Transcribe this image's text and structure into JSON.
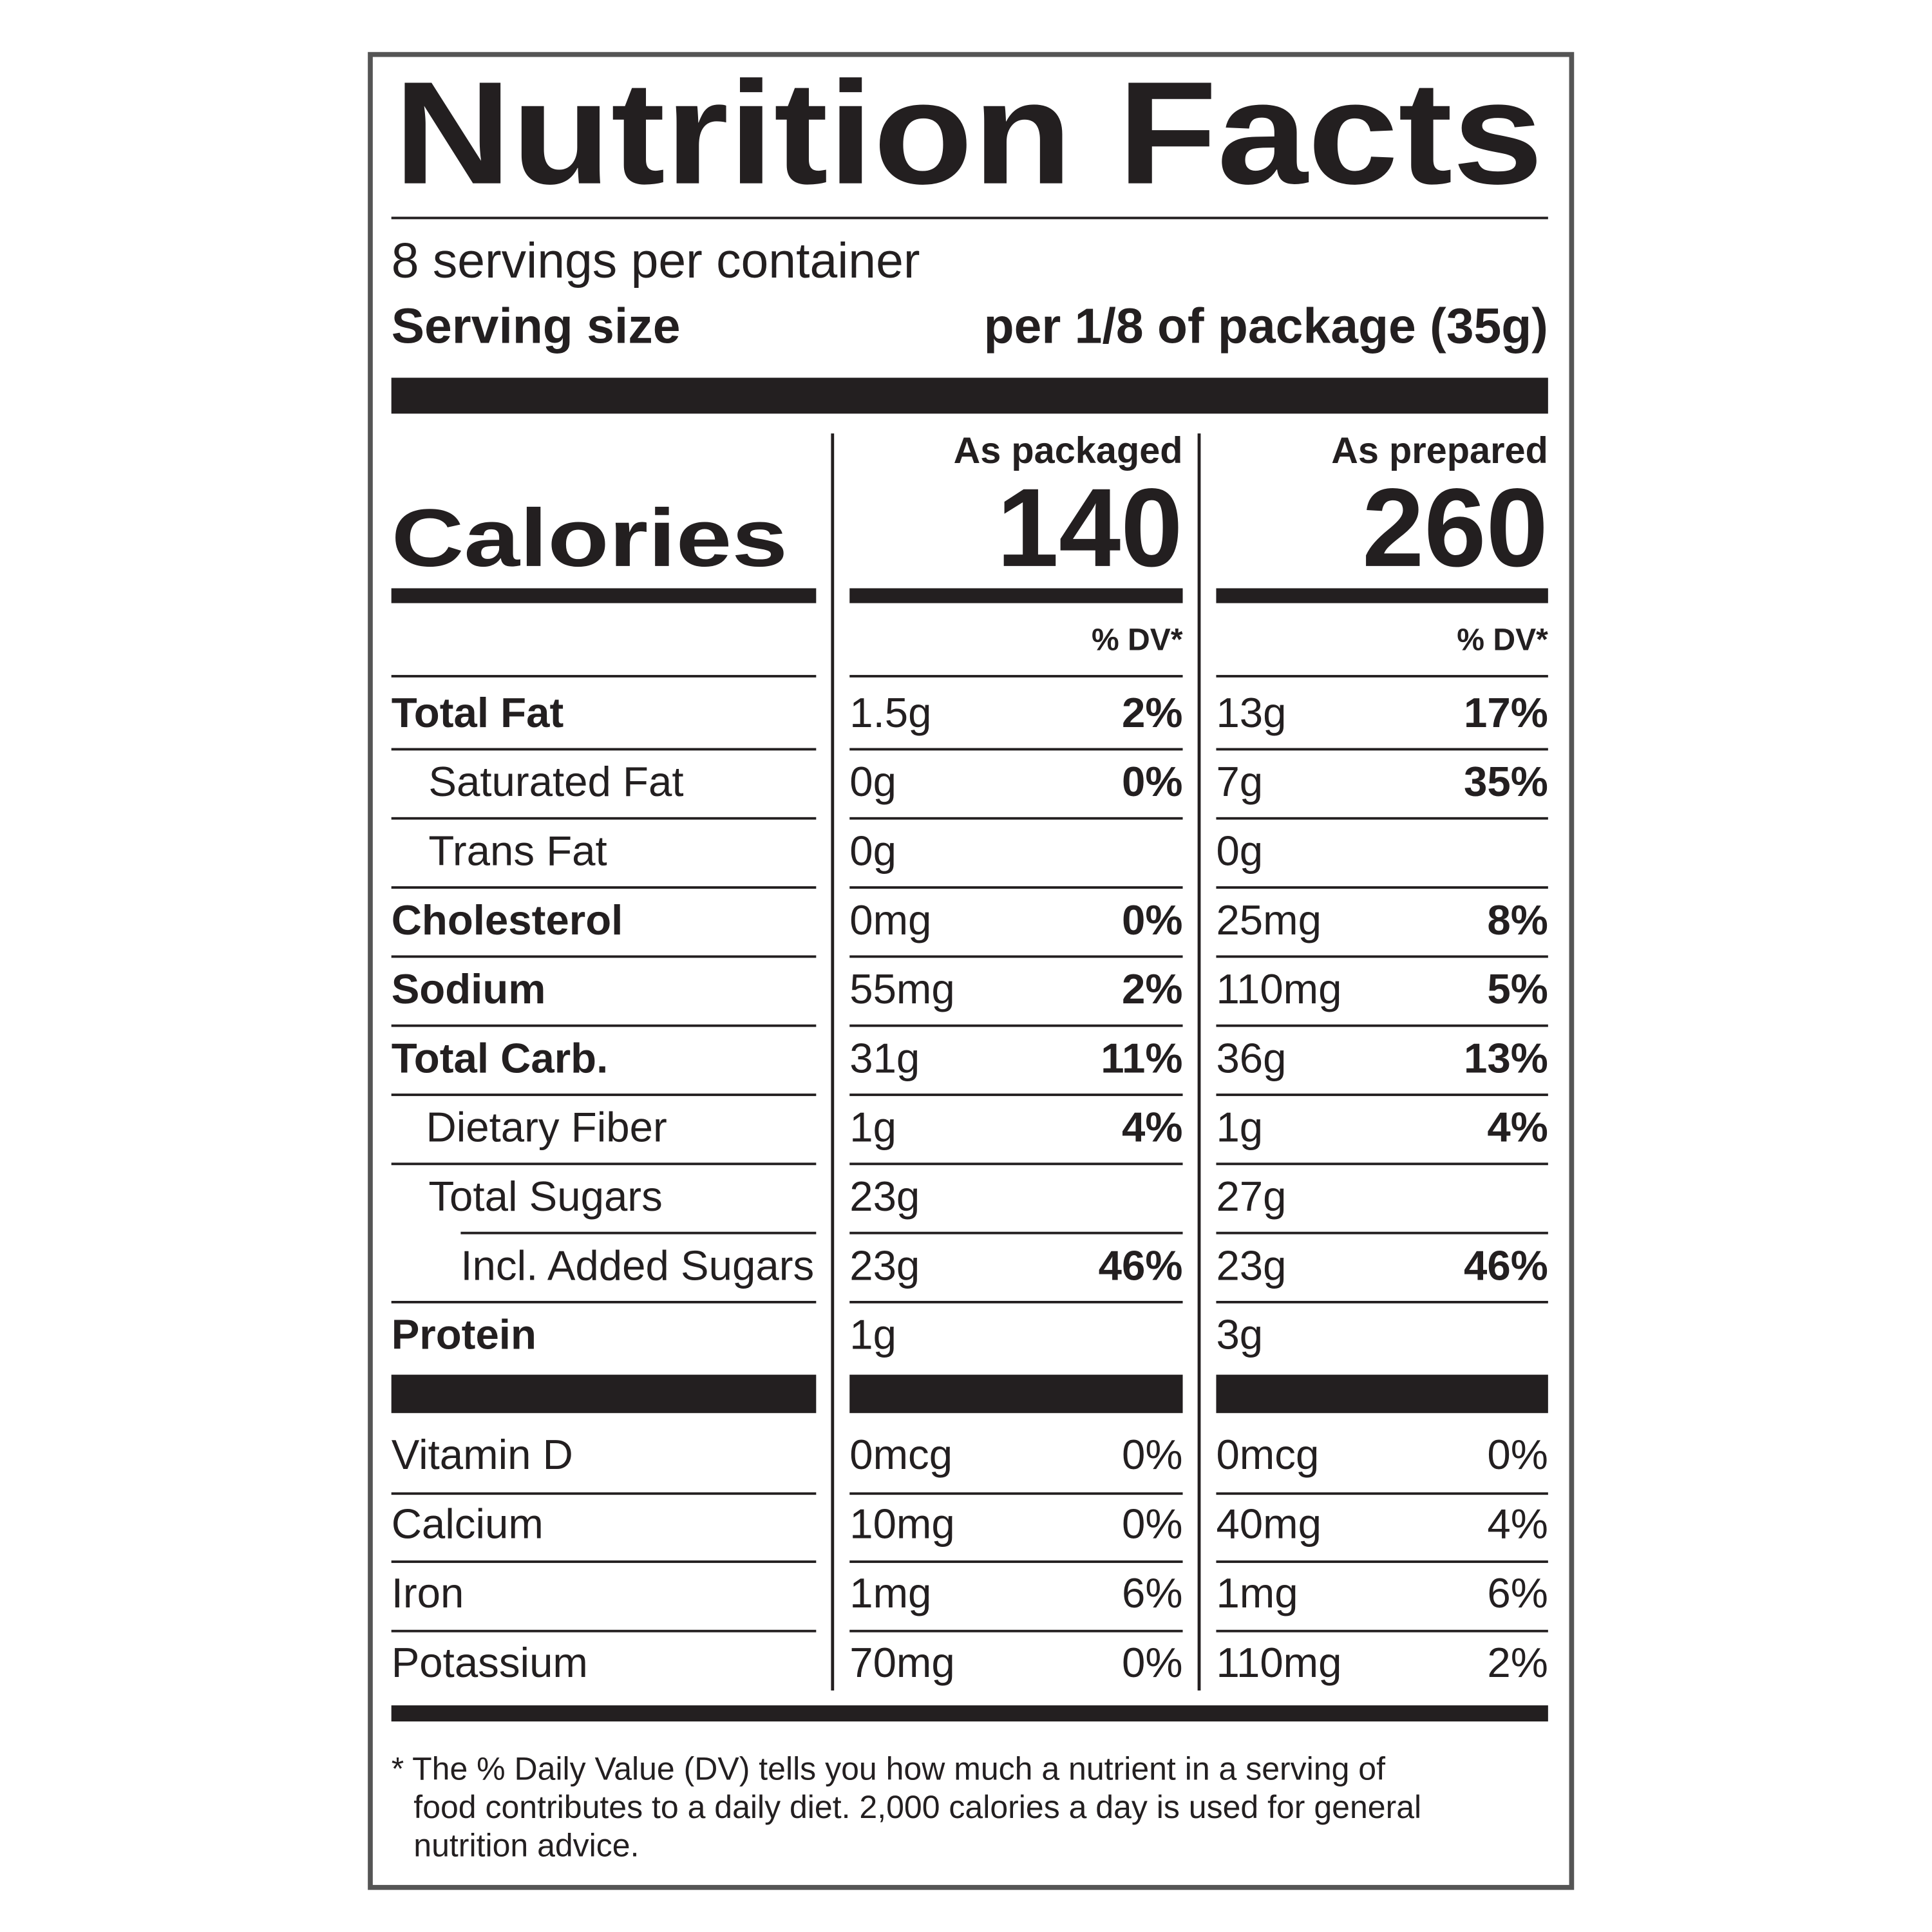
{
  "title": "Nutrition Facts",
  "servings": "8 servings per container",
  "serving_size": {
    "label": "Serving size",
    "value": "per 1/8 of package (35g)"
  },
  "calories_label": "Calories",
  "columns": [
    {
      "header": "As packaged",
      "calories": 140,
      "dv_header": "% DV*"
    },
    {
      "header": "As prepared",
      "calories": 260,
      "dv_header": "% DV*"
    }
  ],
  "nutrients": [
    {
      "name": "Total Fat",
      "bold": true,
      "indent": 0,
      "values": [
        {
          "amount": "1.5g",
          "dv": "2%"
        },
        {
          "amount": "13g",
          "dv": "17%"
        }
      ]
    },
    {
      "name": "Saturated Fat",
      "bold": false,
      "indent": 1,
      "values": [
        {
          "amount": "0g",
          "dv": "0%"
        },
        {
          "amount": "7g",
          "dv": "35%"
        }
      ]
    },
    {
      "name": "Trans Fat",
      "bold": false,
      "indent": 1,
      "values": [
        {
          "amount": "0g"
        },
        {
          "amount": "0g"
        }
      ]
    },
    {
      "name": "Cholesterol",
      "bold": true,
      "indent": 0,
      "values": [
        {
          "amount": "0mg",
          "dv": "0%"
        },
        {
          "amount": "25mg",
          "dv": "8%"
        }
      ]
    },
    {
      "name": "Sodium",
      "bold": true,
      "indent": 0,
      "values": [
        {
          "amount": "55mg",
          "dv": "2%"
        },
        {
          "amount": "110mg",
          "dv": "5%"
        }
      ]
    },
    {
      "name": "Total Carb.",
      "bold": true,
      "indent": 0,
      "values": [
        {
          "amount": "31g",
          "dv": "11%"
        },
        {
          "amount": "36g",
          "dv": "13%"
        }
      ]
    },
    {
      "name": "Dietary Fiber",
      "bold": false,
      "indent": 1,
      "values": [
        {
          "amount": "1g",
          "dv": "4%"
        },
        {
          "amount": "1g",
          "dv": "4%"
        }
      ]
    },
    {
      "name": "Total Sugars",
      "bold": false,
      "indent": 1,
      "values": [
        {
          "amount": "23g"
        },
        {
          "amount": "27g"
        }
      ]
    },
    {
      "name": "Incl. Added Sugars",
      "bold": false,
      "indent": 2,
      "values": [
        {
          "amount": "23g",
          "dv": "46%"
        },
        {
          "amount": "23g",
          "dv": "46%"
        }
      ]
    },
    {
      "name": "Protein",
      "bold": true,
      "indent": 0,
      "values": [
        {
          "amount": "1g"
        },
        {
          "amount": "3g"
        }
      ]
    }
  ],
  "vitamins": [
    {
      "name": "Vitamin D",
      "values": [
        {
          "amount": "0mcg",
          "dv": "0%"
        },
        {
          "amount": "0mcg",
          "dv": "0%"
        }
      ]
    },
    {
      "name": "Calcium",
      "values": [
        {
          "amount": "10mg",
          "dv": "0%"
        },
        {
          "amount": "40mg",
          "dv": "4%"
        }
      ]
    },
    {
      "name": "Iron",
      "values": [
        {
          "amount": "1mg",
          "dv": "6%"
        },
        {
          "amount": "1mg",
          "dv": "6%"
        }
      ]
    },
    {
      "name": "Potassium",
      "values": [
        {
          "amount": "70mg",
          "dv": "0%"
        },
        {
          "amount": "110mg",
          "dv": "2%"
        }
      ]
    }
  ],
  "footnote": [
    "* The % Daily Value (DV) tells you how much a nutrient in a serving of",
    "food contributes to a daily diet. 2,000 calories a day is used for general",
    "nutrition advice."
  ]
}
